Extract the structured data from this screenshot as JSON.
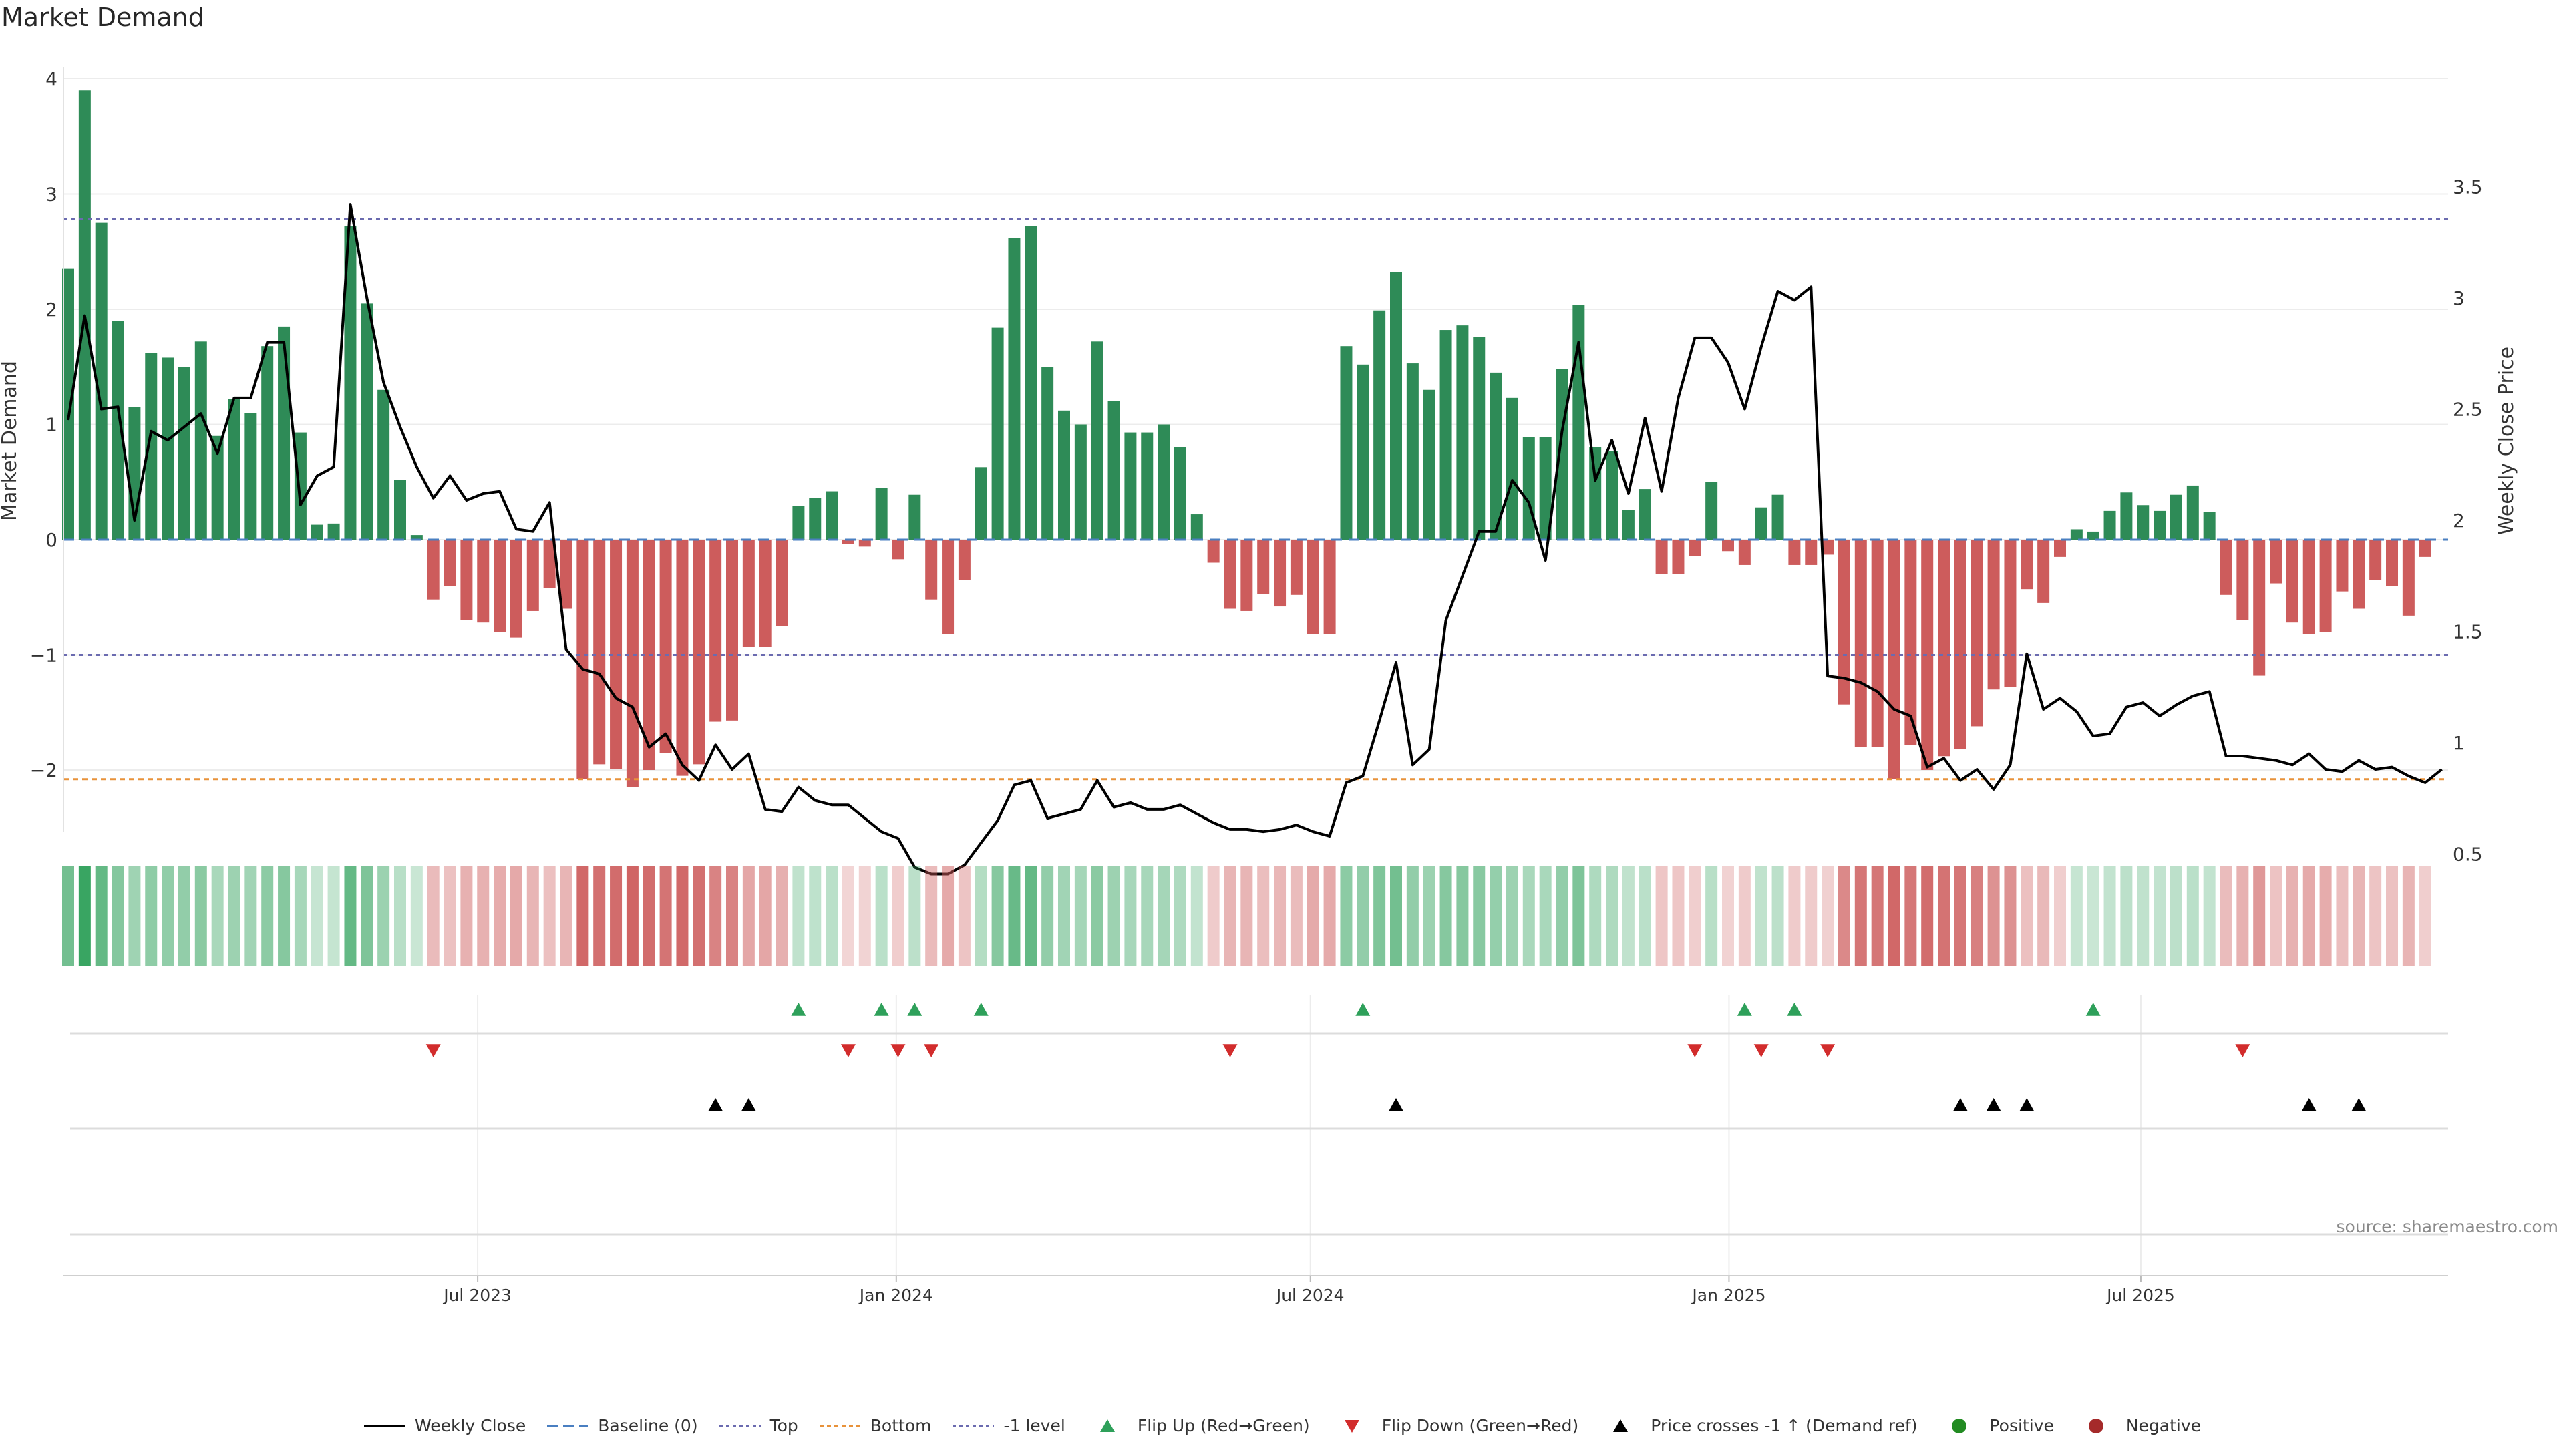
{
  "title": "Market Demand",
  "source": "source: sharemaestro.com",
  "chart_data": {
    "type": "bar",
    "title": "Market Demand",
    "ylabel": "Market Demand",
    "y2label": "Weekly Close Price",
    "ylim": [
      -2.5,
      4.15
    ],
    "y2lim": [
      0.2,
      3.55
    ],
    "yticks": [
      4,
      3,
      2,
      1,
      0,
      -1,
      -2
    ],
    "ytick_labels": [
      "4",
      "3",
      "2",
      "1",
      "0",
      "−1",
      "−2"
    ],
    "y2ticks": [
      3.5,
      3,
      2.5,
      2,
      1.5,
      1,
      0.5
    ],
    "y2tick_labels": [
      "3.5",
      "3",
      "2.5",
      "2",
      "1.5",
      "1",
      "0.5"
    ],
    "reference_lines": {
      "top": 2.78,
      "bottom": -2.08,
      "minus_one": -1.0,
      "baseline": 0
    },
    "x_start": "2023-01-02",
    "x_end": "2025-11-03",
    "xticks": [
      "2023-07-01",
      "2024-01-01",
      "2024-07-01",
      "2025-01-01",
      "2025-07-01"
    ],
    "xtick_labels": [
      "Jul 2023",
      "Jan 2024",
      "Jul 2024",
      "Jan 2025",
      "Jul 2025"
    ],
    "grid": true,
    "legend_position": "bottom",
    "demand": [
      2.35,
      3.9,
      2.75,
      1.9,
      1.15,
      1.62,
      1.58,
      1.5,
      1.72,
      0.9,
      1.22,
      1.1,
      1.68,
      1.85,
      0.93,
      0.13,
      0.14,
      2.72,
      2.05,
      1.3,
      0.52,
      0.04,
      -0.52,
      -0.4,
      -0.7,
      -0.72,
      -0.8,
      -0.85,
      -0.62,
      -0.42,
      -0.6,
      -2.08,
      -1.95,
      -1.99,
      -2.15,
      -2.0,
      -1.85,
      -2.05,
      -1.95,
      -1.58,
      -1.57,
      -0.93,
      -0.93,
      -0.75,
      0.29,
      0.36,
      0.42,
      -0.04,
      -0.06,
      0.45,
      -0.17,
      0.39,
      -0.52,
      -0.82,
      -0.35,
      0.63,
      1.84,
      2.62,
      2.72,
      1.5,
      1.12,
      1.0,
      1.72,
      1.2,
      0.93,
      0.93,
      1.0,
      0.8,
      0.22,
      -0.2,
      -0.6,
      -0.62,
      -0.47,
      -0.58,
      -0.48,
      -0.82,
      -0.82,
      1.68,
      1.52,
      1.99,
      2.32,
      1.53,
      1.3,
      1.82,
      1.86,
      1.76,
      1.45,
      1.23,
      0.89,
      0.89,
      1.48,
      2.04,
      0.8,
      0.77,
      0.26,
      0.44,
      -0.3,
      -0.3,
      -0.14,
      0.5,
      -0.1,
      -0.22,
      0.28,
      0.39,
      -0.22,
      -0.22,
      -0.13,
      -1.43,
      -1.8,
      -1.8,
      -2.08,
      -1.78,
      -2.0,
      -1.88,
      -1.82,
      -1.62,
      -1.3,
      -1.28,
      -0.43,
      -0.55,
      -0.15,
      0.09,
      0.07,
      0.25,
      0.41,
      0.3,
      0.25,
      0.39,
      0.47,
      0.24,
      -0.48,
      -0.7,
      -1.18,
      -0.38,
      -0.72,
      -0.82,
      -0.8,
      -0.45,
      -0.6,
      -0.35,
      -0.4,
      -0.66,
      -0.15
    ],
    "series": [
      {
        "name": "Weekly Close",
        "values": [
          2.45,
          2.92,
          2.5,
          2.51,
          2.0,
          2.4,
          2.36,
          2.42,
          2.48,
          2.3,
          2.55,
          2.55,
          2.8,
          2.8,
          2.07,
          2.2,
          2.24,
          3.42,
          3.0,
          2.62,
          2.42,
          2.24,
          2.1,
          2.2,
          2.09,
          2.12,
          2.13,
          1.96,
          1.95,
          2.08,
          1.42,
          1.33,
          1.31,
          1.2,
          1.16,
          0.98,
          1.04,
          0.9,
          0.83,
          0.99,
          0.88,
          0.95,
          0.7,
          0.69,
          0.8,
          0.74,
          0.72,
          0.72,
          0.66,
          0.6,
          0.57,
          0.44,
          0.41,
          0.41,
          0.45,
          0.55,
          0.65,
          0.81,
          0.83,
          0.66,
          0.68,
          0.7,
          0.83,
          0.71,
          0.73,
          0.7,
          0.7,
          0.72,
          0.68,
          0.64,
          0.61,
          0.61,
          0.6,
          0.61,
          0.63,
          0.6,
          0.58,
          0.82,
          0.85,
          1.1,
          1.36,
          0.9,
          0.97,
          1.55,
          1.75,
          1.95,
          1.95,
          2.18,
          2.08,
          1.82,
          2.4,
          2.8,
          2.18,
          2.36,
          2.12,
          2.46,
          2.13,
          2.55,
          2.82,
          2.82,
          2.71,
          2.5,
          2.78,
          3.03,
          2.99,
          3.05,
          1.3,
          1.29,
          1.27,
          1.23,
          1.15,
          1.12,
          0.89,
          0.93,
          0.83,
          0.88,
          0.79,
          0.9,
          1.4,
          1.15,
          1.2,
          1.14,
          1.03,
          1.04,
          1.16,
          1.18,
          1.12,
          1.17,
          1.21,
          1.23,
          0.94,
          0.94,
          0.93,
          0.92,
          0.9,
          0.95,
          0.88,
          0.87,
          0.92,
          0.88,
          0.89,
          0.85,
          0.82,
          0.88
        ]
      },
      {
        "name": "Baseline (0)"
      },
      {
        "name": "Top"
      },
      {
        "name": "Bottom"
      },
      {
        "name": "-1 level"
      },
      {
        "name": "Flip Up (Red→Green)",
        "x": [
          44,
          49,
          51,
          55,
          78,
          101,
          104,
          122
        ]
      },
      {
        "name": "Flip Down (Green→Red)",
        "x": [
          22,
          47,
          50,
          52,
          70,
          98,
          102,
          106,
          131
        ]
      },
      {
        "name": "Price crosses -1 ↑ (Demand ref)",
        "x": [
          39,
          41,
          80,
          114,
          116,
          118,
          135,
          138
        ]
      },
      {
        "name": "Positive"
      },
      {
        "name": "Negative"
      }
    ]
  },
  "colors": {
    "positive_bar": "#2e8b57",
    "negative_bar": "#cd5c5c",
    "price_line": "#000000",
    "baseline": "#4a7fc1",
    "top_line": "#6b6bb0",
    "bottom_line": "#e8923a",
    "minus_one_line": "#6b6bb0",
    "flip_up": "#2ea05a",
    "flip_down": "#d22c2c",
    "cross_marker": "#000000",
    "positive_dot": "#228b22",
    "negative_dot": "#a52a2a"
  }
}
